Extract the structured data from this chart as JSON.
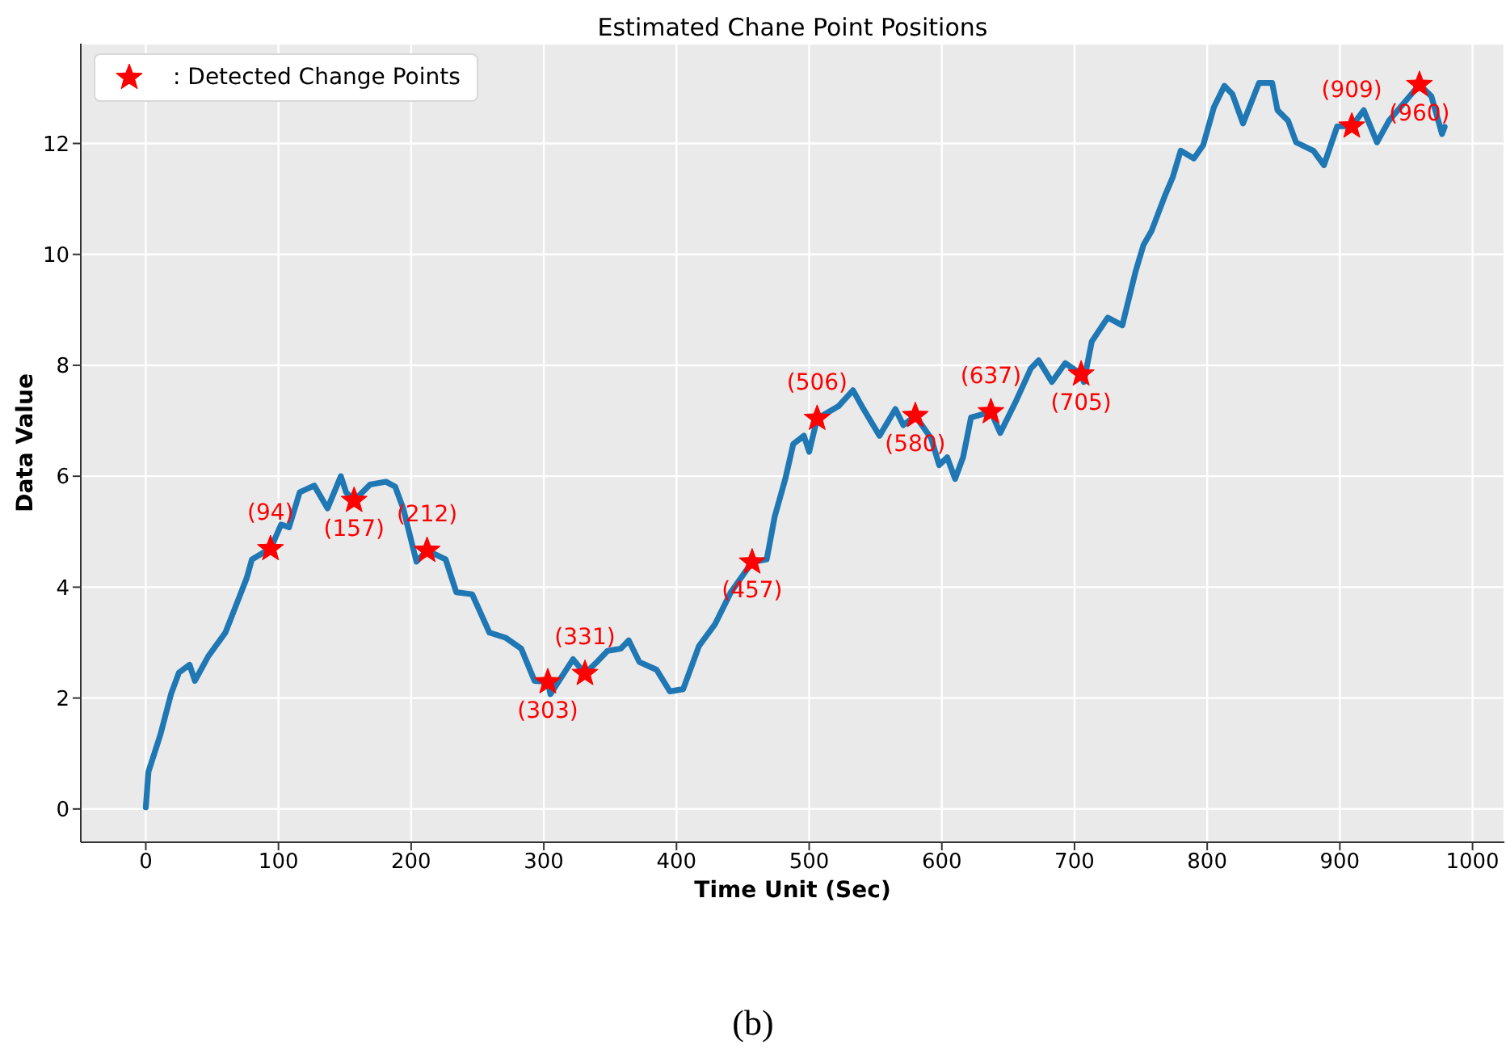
{
  "chart_data": {
    "type": "line",
    "title": "Estimated Chane Point Positions",
    "xlabel": "Time Unit (Sec)",
    "ylabel": "Data Value",
    "series": [
      {
        "color": "#1f77b4",
        "x": [
          0,
          2,
          11,
          19,
          25,
          33,
          37,
          47,
          60,
          68,
          76,
          80,
          90,
          94,
          102,
          108,
          116,
          127,
          137,
          147,
          151,
          157,
          169,
          181,
          188,
          194,
          204,
          212,
          226,
          234,
          246,
          259,
          271,
          283,
          293,
          303,
          305,
          322,
          331,
          340,
          348,
          358,
          364,
          372,
          385,
          395,
          405,
          417,
          429,
          441,
          457,
          468,
          474,
          482,
          488,
          496,
          500,
          506,
          522,
          533,
          541,
          553,
          565,
          571,
          580,
          592,
          598,
          604,
          610,
          616,
          622,
          637,
          644,
          656,
          667,
          673,
          683,
          693,
          705,
          707,
          713,
          725,
          736,
          746,
          752,
          758,
          768,
          774,
          780,
          790,
          797,
          805,
          813,
          819,
          827,
          839,
          849,
          853,
          861,
          867,
          880,
          888,
          898,
          909,
          918,
          928,
          937,
          949,
          960,
          969,
          977,
          979
        ],
        "values": [
          0.03,
          0.67,
          1.34,
          2.07,
          2.46,
          2.6,
          2.31,
          2.75,
          3.18,
          3.67,
          4.16,
          4.5,
          4.64,
          4.69,
          5.13,
          5.08,
          5.71,
          5.83,
          5.42,
          6.0,
          5.71,
          5.56,
          5.85,
          5.9,
          5.81,
          5.42,
          4.46,
          4.66,
          4.5,
          3.91,
          3.87,
          3.18,
          3.09,
          2.89,
          2.31,
          2.29,
          2.07,
          2.7,
          2.44,
          2.65,
          2.85,
          2.89,
          3.04,
          2.65,
          2.51,
          2.12,
          2.16,
          2.94,
          3.33,
          3.91,
          4.45,
          4.5,
          5.27,
          5.95,
          6.58,
          6.73,
          6.44,
          7.04,
          7.26,
          7.55,
          7.21,
          6.73,
          7.21,
          6.92,
          7.09,
          6.68,
          6.2,
          6.34,
          5.95,
          6.34,
          7.06,
          7.16,
          6.78,
          7.36,
          7.94,
          8.09,
          7.7,
          8.04,
          7.84,
          7.7,
          8.43,
          8.86,
          8.72,
          9.69,
          10.17,
          10.42,
          11.05,
          11.39,
          11.87,
          11.73,
          11.97,
          12.65,
          13.04,
          12.89,
          12.36,
          13.09,
          13.09,
          12.6,
          12.41,
          12.02,
          11.87,
          11.61,
          12.31,
          12.31,
          12.6,
          12.02,
          12.41,
          12.75,
          13.06,
          12.85,
          12.17,
          12.3
        ]
      },
      {
        "type": "scatter",
        "name": ": Detected Change Points",
        "color": "#ff0000",
        "marker": "star",
        "x": [
          94,
          157,
          212,
          303,
          331,
          457,
          506,
          580,
          637,
          705,
          909,
          960
        ],
        "values": [
          4.69,
          5.56,
          4.66,
          2.29,
          2.44,
          4.45,
          7.04,
          7.09,
          7.16,
          7.84,
          12.31,
          13.06
        ]
      }
    ],
    "xlim": [
      -49,
      1024
    ],
    "ylim": [
      -0.6,
      13.8
    ],
    "xticks": [
      0,
      100,
      200,
      300,
      400,
      500,
      600,
      700,
      800,
      900,
      1000
    ],
    "yticks": [
      0,
      2,
      4,
      6,
      8,
      10,
      12
    ],
    "grid": true,
    "legend": "top left",
    "annotations": [
      {
        "text": "(94)",
        "x": 94,
        "y": 4.69
      },
      {
        "text": "(157)",
        "x": 157,
        "y": 5.56
      },
      {
        "text": "(212)",
        "x": 212,
        "y": 4.66
      },
      {
        "text": "(303)",
        "x": 303,
        "y": 2.29
      },
      {
        "text": "(331)",
        "x": 331,
        "y": 2.44
      },
      {
        "text": "(457)",
        "x": 457,
        "y": 4.45
      },
      {
        "text": "(506)",
        "x": 506,
        "y": 7.04
      },
      {
        "text": "(580)",
        "x": 580,
        "y": 7.09
      },
      {
        "text": "(637)",
        "x": 637,
        "y": 7.16
      },
      {
        "text": "(705)",
        "x": 705,
        "y": 7.84
      },
      {
        "text": "(909)",
        "x": 909,
        "y": 12.31
      },
      {
        "text": "(960)",
        "x": 960,
        "y": 13.06
      },
      "(b)"
    ]
  }
}
